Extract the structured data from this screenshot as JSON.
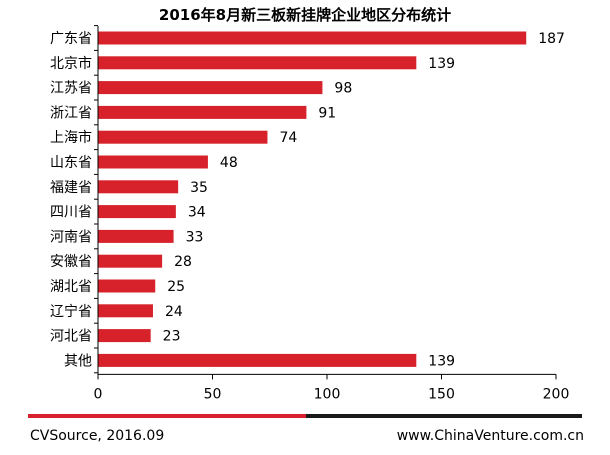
{
  "title": "2016年8月新三板新挂牌企业地区分布统计",
  "footer": {
    "source": "CVSource, 2016.09",
    "website": "www.ChinaVenture.com.cn"
  },
  "colors": {
    "bar": "#d7222b",
    "footer_red": "#d7222b",
    "footer_dark": "#1a1a1a"
  },
  "chart_data": {
    "type": "bar",
    "orientation": "horizontal",
    "title": "2016年8月新三板新挂牌企业地区分布统计",
    "categories": [
      "广东省",
      "北京市",
      "江苏省",
      "浙江省",
      "上海市",
      "山东省",
      "福建省",
      "四川省",
      "河南省",
      "安徽省",
      "湖北省",
      "辽宁省",
      "河北省",
      "其他"
    ],
    "values": [
      187,
      139,
      98,
      91,
      74,
      48,
      35,
      34,
      33,
      28,
      25,
      24,
      23,
      139
    ],
    "xlim": [
      0,
      200
    ],
    "xticks": [
      0,
      50,
      100,
      150,
      200
    ],
    "grid": false,
    "data_labels": true
  }
}
